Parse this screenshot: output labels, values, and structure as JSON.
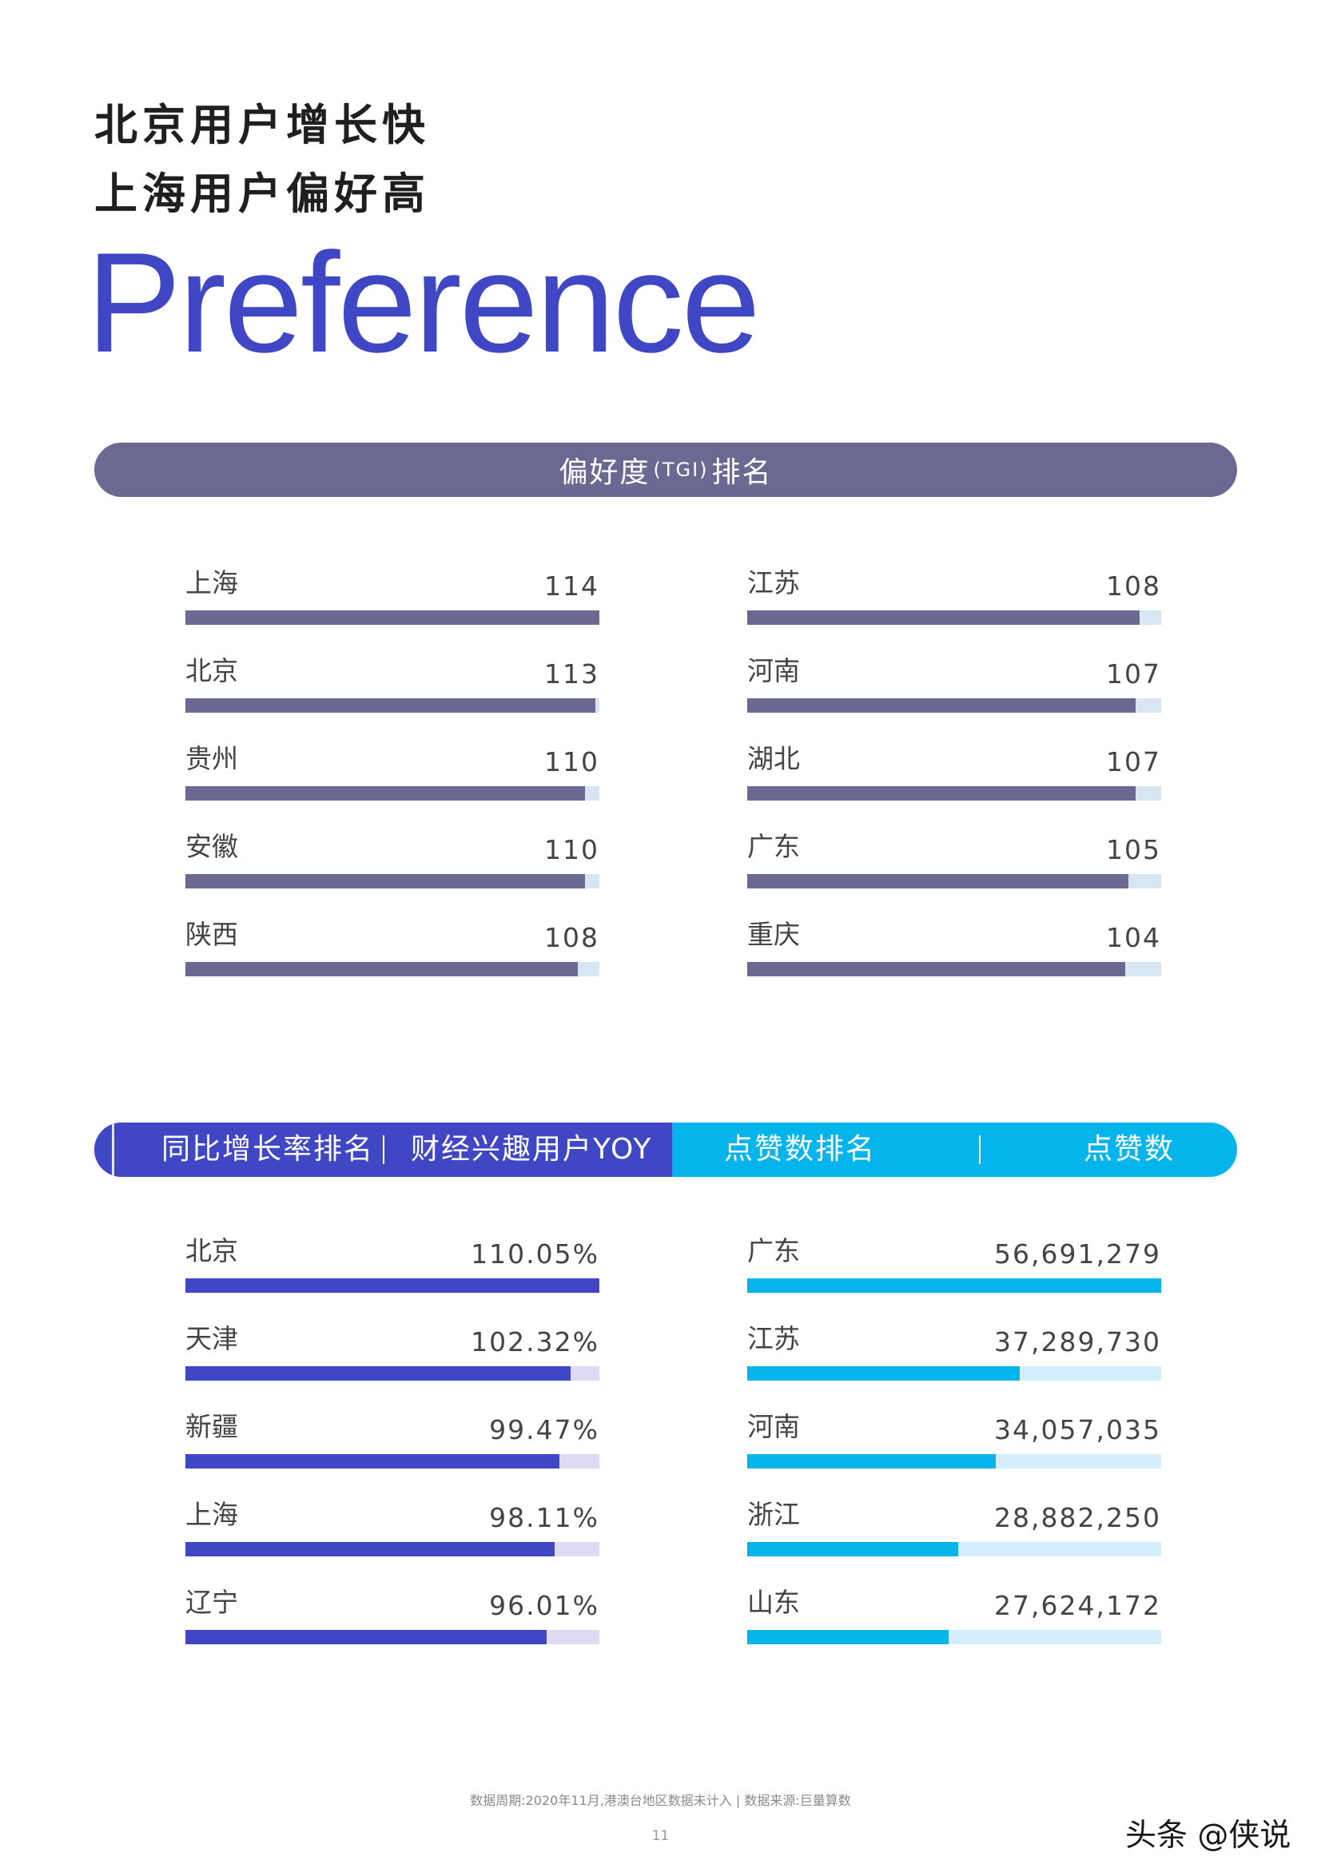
{
  "header": {
    "title_line1": "北京用户增长快",
    "title_line2": "上海用户偏好高",
    "big_title": "Preference"
  },
  "section_tgi": {
    "title_main": "偏好度",
    "title_paren": "(TGI)",
    "title_end": "排名"
  },
  "section_growth": {
    "left_title": "同比增长率排名",
    "left_subtitle": "财经兴趣用户YOY",
    "right_title": "点赞数排名",
    "right_subtitle": "点赞数"
  },
  "colors": {
    "tgi_fill": "#6b6892",
    "tgi_track": "#d8e6f4",
    "yoy_fill": "#4047c4",
    "yoy_track": "#dddaf4",
    "likes_fill": "#06b4ec",
    "likes_track": "#d4eefb"
  },
  "chart_data": [
    {
      "type": "bar",
      "orientation": "horizontal",
      "title": "偏好度(TGI)排名",
      "categories": [
        "上海",
        "北京",
        "贵州",
        "安徽",
        "陕西"
      ],
      "values": [
        114,
        113,
        110,
        110,
        108
      ],
      "value_labels": [
        "114",
        "113",
        "110",
        "110",
        "108"
      ],
      "xlim": [
        0,
        114
      ]
    },
    {
      "type": "bar",
      "orientation": "horizontal",
      "title": "偏好度(TGI)排名",
      "categories": [
        "江苏",
        "河南",
        "湖北",
        "广东",
        "重庆"
      ],
      "values": [
        108,
        107,
        107,
        105,
        104
      ],
      "value_labels": [
        "108",
        "107",
        "107",
        "105",
        "104"
      ],
      "xlim": [
        0,
        114
      ]
    },
    {
      "type": "bar",
      "orientation": "horizontal",
      "title": "同比增长率排名",
      "categories": [
        "北京",
        "天津",
        "新疆",
        "上海",
        "辽宁"
      ],
      "values": [
        110.05,
        102.32,
        99.47,
        98.11,
        96.01
      ],
      "value_labels": [
        "110.05%",
        "102.32%",
        "99.47%",
        "98.11%",
        "96.01%"
      ],
      "xlim": [
        0,
        110.05
      ]
    },
    {
      "type": "bar",
      "orientation": "horizontal",
      "title": "点赞数排名",
      "categories": [
        "广东",
        "江苏",
        "河南",
        "浙江",
        "山东"
      ],
      "values": [
        56691279,
        37289730,
        34057035,
        28882250,
        27624172
      ],
      "value_labels": [
        "56,691,279",
        "37,289,730",
        "34,057,035",
        "28,882,250",
        "27,624,172"
      ]
    }
  ],
  "footer": {
    "note": "数据周期:2020年11月,港澳台地区数据未计入 | 数据来源:巨量算数",
    "page_number": "11"
  },
  "watermark": "头条 @侠说"
}
